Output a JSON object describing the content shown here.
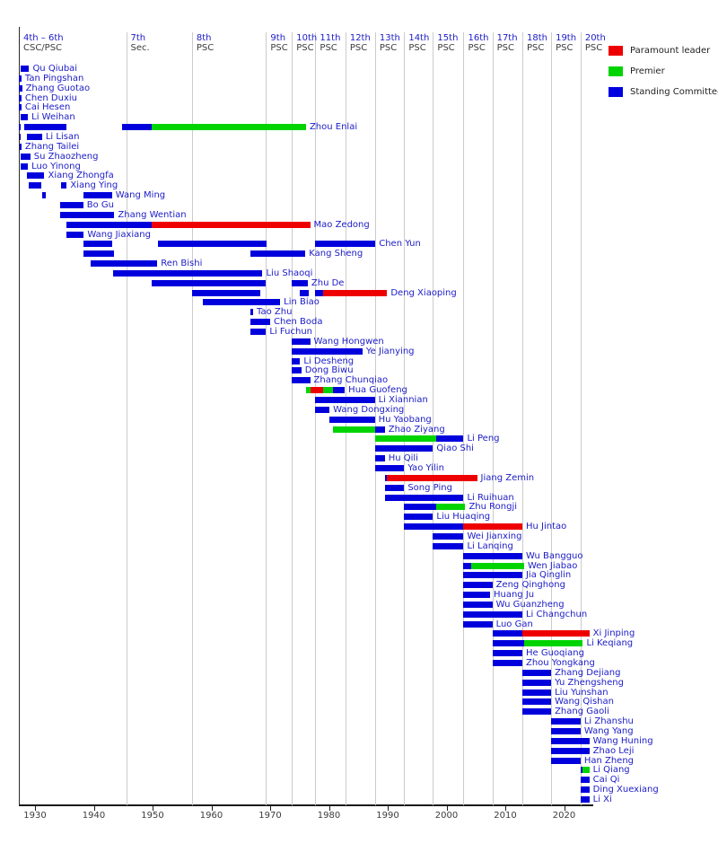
{
  "legend": {
    "items": [
      {
        "label": "Paramount leader",
        "color": "#ee0000",
        "key": "leader"
      },
      {
        "label": "Premier",
        "color": "#00d400",
        "key": "premier"
      },
      {
        "label": "Standing Committee",
        "color": "#0000e0",
        "key": "sc"
      }
    ]
  },
  "chart_data": {
    "type": "bar",
    "subtype": "gantt-timeline",
    "x_axis": {
      "tick_years": [
        1930,
        1940,
        1950,
        1960,
        1970,
        1980,
        1990,
        2000,
        2010,
        2020
      ]
    },
    "x_range": [
      1927.25,
      2025.0
    ],
    "now_year": 2024.3,
    "grid": "vertical-congress-boundaries",
    "legend_position": "top-right",
    "colors": {
      "sc": "#0000dd",
      "premier": "#00d400",
      "leader": "#ee0000"
    },
    "color_meanings": {
      "sc": "Standing Committee",
      "premier": "Premier",
      "leader": "Paramount leader"
    },
    "congress_columns": [
      {
        "label1": "4th – 6th",
        "label2": "CSC/PSC",
        "start": 1927.25
      },
      {
        "label1": "7th",
        "label2": "Sec.",
        "start": 1945.5
      },
      {
        "label1": "8th",
        "label2": "PSC",
        "start": 1956.7
      },
      {
        "label1": "9th",
        "label2": "PSC",
        "start": 1969.3
      },
      {
        "label1": "10th",
        "label2": "PSC",
        "start": 1973.7
      },
      {
        "label1": "11th",
        "label2": "PSC",
        "start": 1977.7
      },
      {
        "label1": "12th",
        "label2": "PSC",
        "start": 1982.8
      },
      {
        "label1": "13th",
        "label2": "PSC",
        "start": 1987.85
      },
      {
        "label1": "14th",
        "label2": "PSC",
        "start": 1992.8
      },
      {
        "label1": "15th",
        "label2": "PSC",
        "start": 1997.7
      },
      {
        "label1": "16th",
        "label2": "PSC",
        "start": 2002.9
      },
      {
        "label1": "17th",
        "label2": "PSC",
        "start": 2007.8
      },
      {
        "label1": "18th",
        "label2": "PSC",
        "start": 2012.9
      },
      {
        "label1": "19th",
        "label2": "PSC",
        "start": 2017.8
      },
      {
        "label1": "20th",
        "label2": "PSC",
        "start": 2022.8
      }
    ],
    "people": [
      {
        "name": "Qu Qiubai",
        "segments": [
          [
            1927.6,
            1929.0,
            "sc"
          ]
        ]
      },
      {
        "name": "Tan Pingshan",
        "segments": [
          [
            1927.3,
            1927.7,
            "sc"
          ]
        ]
      },
      {
        "name": "Zhang Guotao",
        "segments": [
          [
            1927.3,
            1927.8,
            "sc"
          ]
        ]
      },
      {
        "name": "Chen Duxiu",
        "segments": [
          [
            1927.3,
            1927.7,
            "sc"
          ]
        ]
      },
      {
        "name": "Cai Hesen",
        "segments": [
          [
            1927.3,
            1927.7,
            "sc"
          ]
        ]
      },
      {
        "name": "Li Weihan",
        "segments": [
          [
            1927.6,
            1928.8,
            "sc"
          ]
        ]
      },
      {
        "name": "Zhou Enlai",
        "segments": [
          [
            1927.3,
            1927.6,
            "sc"
          ],
          [
            1928.1,
            1935.4,
            "sc"
          ],
          [
            1944.8,
            1949.8,
            "sc"
          ],
          [
            1949.8,
            1976.1,
            "premier"
          ]
        ]
      },
      {
        "name": "Li Lisan",
        "segments": [
          [
            1927.4,
            1927.6,
            "sc"
          ],
          [
            1928.7,
            1931.2,
            "sc"
          ]
        ]
      },
      {
        "name": "Zhang Tailei",
        "segments": [
          [
            1927.4,
            1927.7,
            "sc"
          ]
        ]
      },
      {
        "name": "Su Zhaozheng",
        "segments": [
          [
            1927.6,
            1929.2,
            "sc"
          ]
        ]
      },
      {
        "name": "Luo Yinong",
        "segments": [
          [
            1927.6,
            1928.8,
            "sc"
          ]
        ]
      },
      {
        "name": "Xiang Zhongfa",
        "segments": [
          [
            1928.7,
            1931.6,
            "sc"
          ]
        ]
      },
      {
        "name": "Xiang Ying",
        "segments": [
          [
            1928.9,
            1931.1,
            "sc"
          ],
          [
            1934.4,
            1935.4,
            "sc"
          ]
        ]
      },
      {
        "name": "Wang Ming",
        "segments": [
          [
            1931.2,
            1931.8,
            "sc"
          ],
          [
            1938.2,
            1943.1,
            "sc"
          ]
        ]
      },
      {
        "name": "Bo Gu",
        "segments": [
          [
            1934.3,
            1938.2,
            "sc"
          ]
        ]
      },
      {
        "name": "Zhang Wentian",
        "segments": [
          [
            1934.3,
            1943.5,
            "sc"
          ]
        ]
      },
      {
        "name": "Mao Zedong",
        "segments": [
          [
            1935.3,
            1949.8,
            "sc"
          ],
          [
            1949.8,
            1976.8,
            "leader"
          ]
        ]
      },
      {
        "name": "Wang Jiaxiang",
        "segments": [
          [
            1935.3,
            1938.3,
            "sc"
          ]
        ]
      },
      {
        "name": "Chen Yun",
        "segments": [
          [
            1938.2,
            1943.1,
            "sc"
          ],
          [
            1950.9,
            1969.4,
            "sc"
          ],
          [
            1977.7,
            1987.9,
            "sc"
          ]
        ]
      },
      {
        "name": "Kang Sheng",
        "segments": [
          [
            1938.2,
            1943.4,
            "sc"
          ],
          [
            1966.7,
            1976.0,
            "sc"
          ]
        ]
      },
      {
        "name": "Ren Bishi",
        "segments": [
          [
            1939.4,
            1950.8,
            "sc"
          ]
        ]
      },
      {
        "name": "Liu Shaoqi",
        "segments": [
          [
            1943.3,
            1968.7,
            "sc"
          ]
        ]
      },
      {
        "name": "Zhu De",
        "segments": [
          [
            1949.9,
            1969.3,
            "sc"
          ],
          [
            1973.7,
            1976.4,
            "sc"
          ]
        ]
      },
      {
        "name": "Deng Xiaoping",
        "segments": [
          [
            1956.7,
            1968.3,
            "sc"
          ],
          [
            1975.1,
            1976.5,
            "sc"
          ],
          [
            1977.6,
            1978.95,
            "sc"
          ],
          [
            1978.95,
            1989.9,
            "leader"
          ]
        ]
      },
      {
        "name": "Lin Biao",
        "segments": [
          [
            1958.5,
            1971.7,
            "sc"
          ]
        ]
      },
      {
        "name": "Tao Zhu",
        "segments": [
          [
            1966.6,
            1967.1,
            "sc"
          ]
        ]
      },
      {
        "name": "Chen Boda",
        "segments": [
          [
            1966.6,
            1970.0,
            "sc"
          ]
        ]
      },
      {
        "name": "Li Fuchun",
        "segments": [
          [
            1966.6,
            1969.3,
            "sc"
          ]
        ]
      },
      {
        "name": "Wang Hongwen",
        "segments": [
          [
            1973.7,
            1976.8,
            "sc"
          ]
        ]
      },
      {
        "name": "Ye Jianying",
        "segments": [
          [
            1973.7,
            1985.7,
            "sc"
          ]
        ]
      },
      {
        "name": "Li Desheng",
        "segments": [
          [
            1973.7,
            1975.1,
            "sc"
          ]
        ]
      },
      {
        "name": "Dong Biwu",
        "segments": [
          [
            1973.7,
            1975.3,
            "sc"
          ]
        ]
      },
      {
        "name": "Zhang Chunqiao",
        "segments": [
          [
            1973.7,
            1976.8,
            "sc"
          ]
        ]
      },
      {
        "name": "Hua Guofeng",
        "segments": [
          [
            1976.1,
            1976.8,
            "premier"
          ],
          [
            1976.8,
            1979.0,
            "leader"
          ],
          [
            1979.0,
            1980.7,
            "premier"
          ],
          [
            1980.7,
            1982.7,
            "sc"
          ]
        ]
      },
      {
        "name": "Li Xiannian",
        "segments": [
          [
            1977.6,
            1987.8,
            "sc"
          ]
        ]
      },
      {
        "name": "Wang Dongxing",
        "segments": [
          [
            1977.6,
            1980.1,
            "sc"
          ]
        ]
      },
      {
        "name": "Hu Yaobang",
        "segments": [
          [
            1980.1,
            1987.8,
            "sc"
          ]
        ]
      },
      {
        "name": "Zhao Ziyang",
        "segments": [
          [
            1980.7,
            1987.8,
            "premier"
          ],
          [
            1987.8,
            1989.5,
            "sc"
          ]
        ]
      },
      {
        "name": "Li Peng",
        "segments": [
          [
            1987.9,
            1998.2,
            "premier"
          ],
          [
            1998.2,
            2002.9,
            "sc"
          ]
        ]
      },
      {
        "name": "Qiao Shi",
        "segments": [
          [
            1987.9,
            1997.7,
            "sc"
          ]
        ]
      },
      {
        "name": "Hu Qili",
        "segments": [
          [
            1987.9,
            1989.5,
            "sc"
          ]
        ]
      },
      {
        "name": "Yao Yilin",
        "segments": [
          [
            1987.9,
            1992.8,
            "sc"
          ]
        ]
      },
      {
        "name": "Jiang Zemin",
        "segments": [
          [
            1989.5,
            1989.9,
            "sc"
          ],
          [
            1989.9,
            2005.2,
            "leader"
          ]
        ]
      },
      {
        "name": "Song Ping",
        "segments": [
          [
            1989.5,
            1992.8,
            "sc"
          ]
        ]
      },
      {
        "name": "Li Ruihuan",
        "segments": [
          [
            1989.5,
            2002.9,
            "sc"
          ]
        ]
      },
      {
        "name": "Zhu Rongji",
        "segments": [
          [
            1992.8,
            1998.3,
            "sc"
          ],
          [
            1998.3,
            2003.2,
            "premier"
          ]
        ]
      },
      {
        "name": "Liu Huaqing",
        "segments": [
          [
            1992.8,
            1997.7,
            "sc"
          ]
        ]
      },
      {
        "name": "Hu Jintao",
        "segments": [
          [
            1992.8,
            2002.9,
            "sc"
          ],
          [
            2002.9,
            2012.9,
            "leader"
          ]
        ]
      },
      {
        "name": "Wei Jianxing",
        "segments": [
          [
            1997.7,
            2002.9,
            "sc"
          ]
        ]
      },
      {
        "name": "Li Lanqing",
        "segments": [
          [
            1997.7,
            2002.9,
            "sc"
          ]
        ]
      },
      {
        "name": "Wu Bangguo",
        "segments": [
          [
            2002.9,
            2012.9,
            "sc"
          ]
        ]
      },
      {
        "name": "Wen Jiabao",
        "segments": [
          [
            2002.9,
            2004.2,
            "sc"
          ],
          [
            2004.2,
            2013.2,
            "premier"
          ]
        ]
      },
      {
        "name": "Jia Qinglin",
        "segments": [
          [
            2002.9,
            2012.9,
            "sc"
          ]
        ]
      },
      {
        "name": "Zeng Qinghong",
        "segments": [
          [
            2002.9,
            2007.8,
            "sc"
          ]
        ]
      },
      {
        "name": "Huang Ju",
        "segments": [
          [
            2002.9,
            2007.4,
            "sc"
          ]
        ]
      },
      {
        "name": "Wu Guanzheng",
        "segments": [
          [
            2002.9,
            2007.8,
            "sc"
          ]
        ]
      },
      {
        "name": "Li Changchun",
        "segments": [
          [
            2002.9,
            2012.9,
            "sc"
          ]
        ]
      },
      {
        "name": "Luo Gan",
        "segments": [
          [
            2002.9,
            2007.8,
            "sc"
          ]
        ]
      },
      {
        "name": "Xi Jinping",
        "segments": [
          [
            2007.8,
            2012.9,
            "sc"
          ],
          [
            2012.9,
            2024.3,
            "leader"
          ]
        ]
      },
      {
        "name": "Li Keqiang",
        "segments": [
          [
            2007.8,
            2013.2,
            "sc"
          ],
          [
            2013.2,
            2023.2,
            "premier"
          ]
        ]
      },
      {
        "name": "He Guoqiang",
        "segments": [
          [
            2007.8,
            2012.9,
            "sc"
          ]
        ]
      },
      {
        "name": "Zhou Yongkang",
        "segments": [
          [
            2007.8,
            2012.9,
            "sc"
          ]
        ]
      },
      {
        "name": "Zhang Dejiang",
        "segments": [
          [
            2012.9,
            2017.8,
            "sc"
          ]
        ]
      },
      {
        "name": "Yu Zhengsheng",
        "segments": [
          [
            2012.9,
            2017.8,
            "sc"
          ]
        ]
      },
      {
        "name": "Liu Yunshan",
        "segments": [
          [
            2012.9,
            2017.8,
            "sc"
          ]
        ]
      },
      {
        "name": "Wang Qishan",
        "segments": [
          [
            2012.9,
            2017.8,
            "sc"
          ]
        ]
      },
      {
        "name": "Zhang Gaoli",
        "segments": [
          [
            2012.9,
            2017.8,
            "sc"
          ]
        ]
      },
      {
        "name": "Li Zhanshu",
        "segments": [
          [
            2017.8,
            2022.8,
            "sc"
          ]
        ]
      },
      {
        "name": "Wang Yang",
        "segments": [
          [
            2017.8,
            2022.8,
            "sc"
          ]
        ]
      },
      {
        "name": "Wang Huning",
        "segments": [
          [
            2017.8,
            2024.3,
            "sc"
          ]
        ]
      },
      {
        "name": "Zhao Leji",
        "segments": [
          [
            2017.8,
            2024.3,
            "sc"
          ]
        ]
      },
      {
        "name": "Han Zheng",
        "segments": [
          [
            2017.8,
            2022.8,
            "sc"
          ]
        ]
      },
      {
        "name": "Li Qiang",
        "segments": [
          [
            2022.8,
            2023.2,
            "sc"
          ],
          [
            2023.2,
            2024.3,
            "premier"
          ]
        ]
      },
      {
        "name": "Cai Qi",
        "segments": [
          [
            2022.8,
            2024.3,
            "sc"
          ]
        ]
      },
      {
        "name": "Ding Xuexiang",
        "segments": [
          [
            2022.8,
            2024.3,
            "sc"
          ]
        ]
      },
      {
        "name": "Li Xi",
        "segments": [
          [
            2022.8,
            2024.3,
            "sc"
          ]
        ]
      }
    ]
  }
}
